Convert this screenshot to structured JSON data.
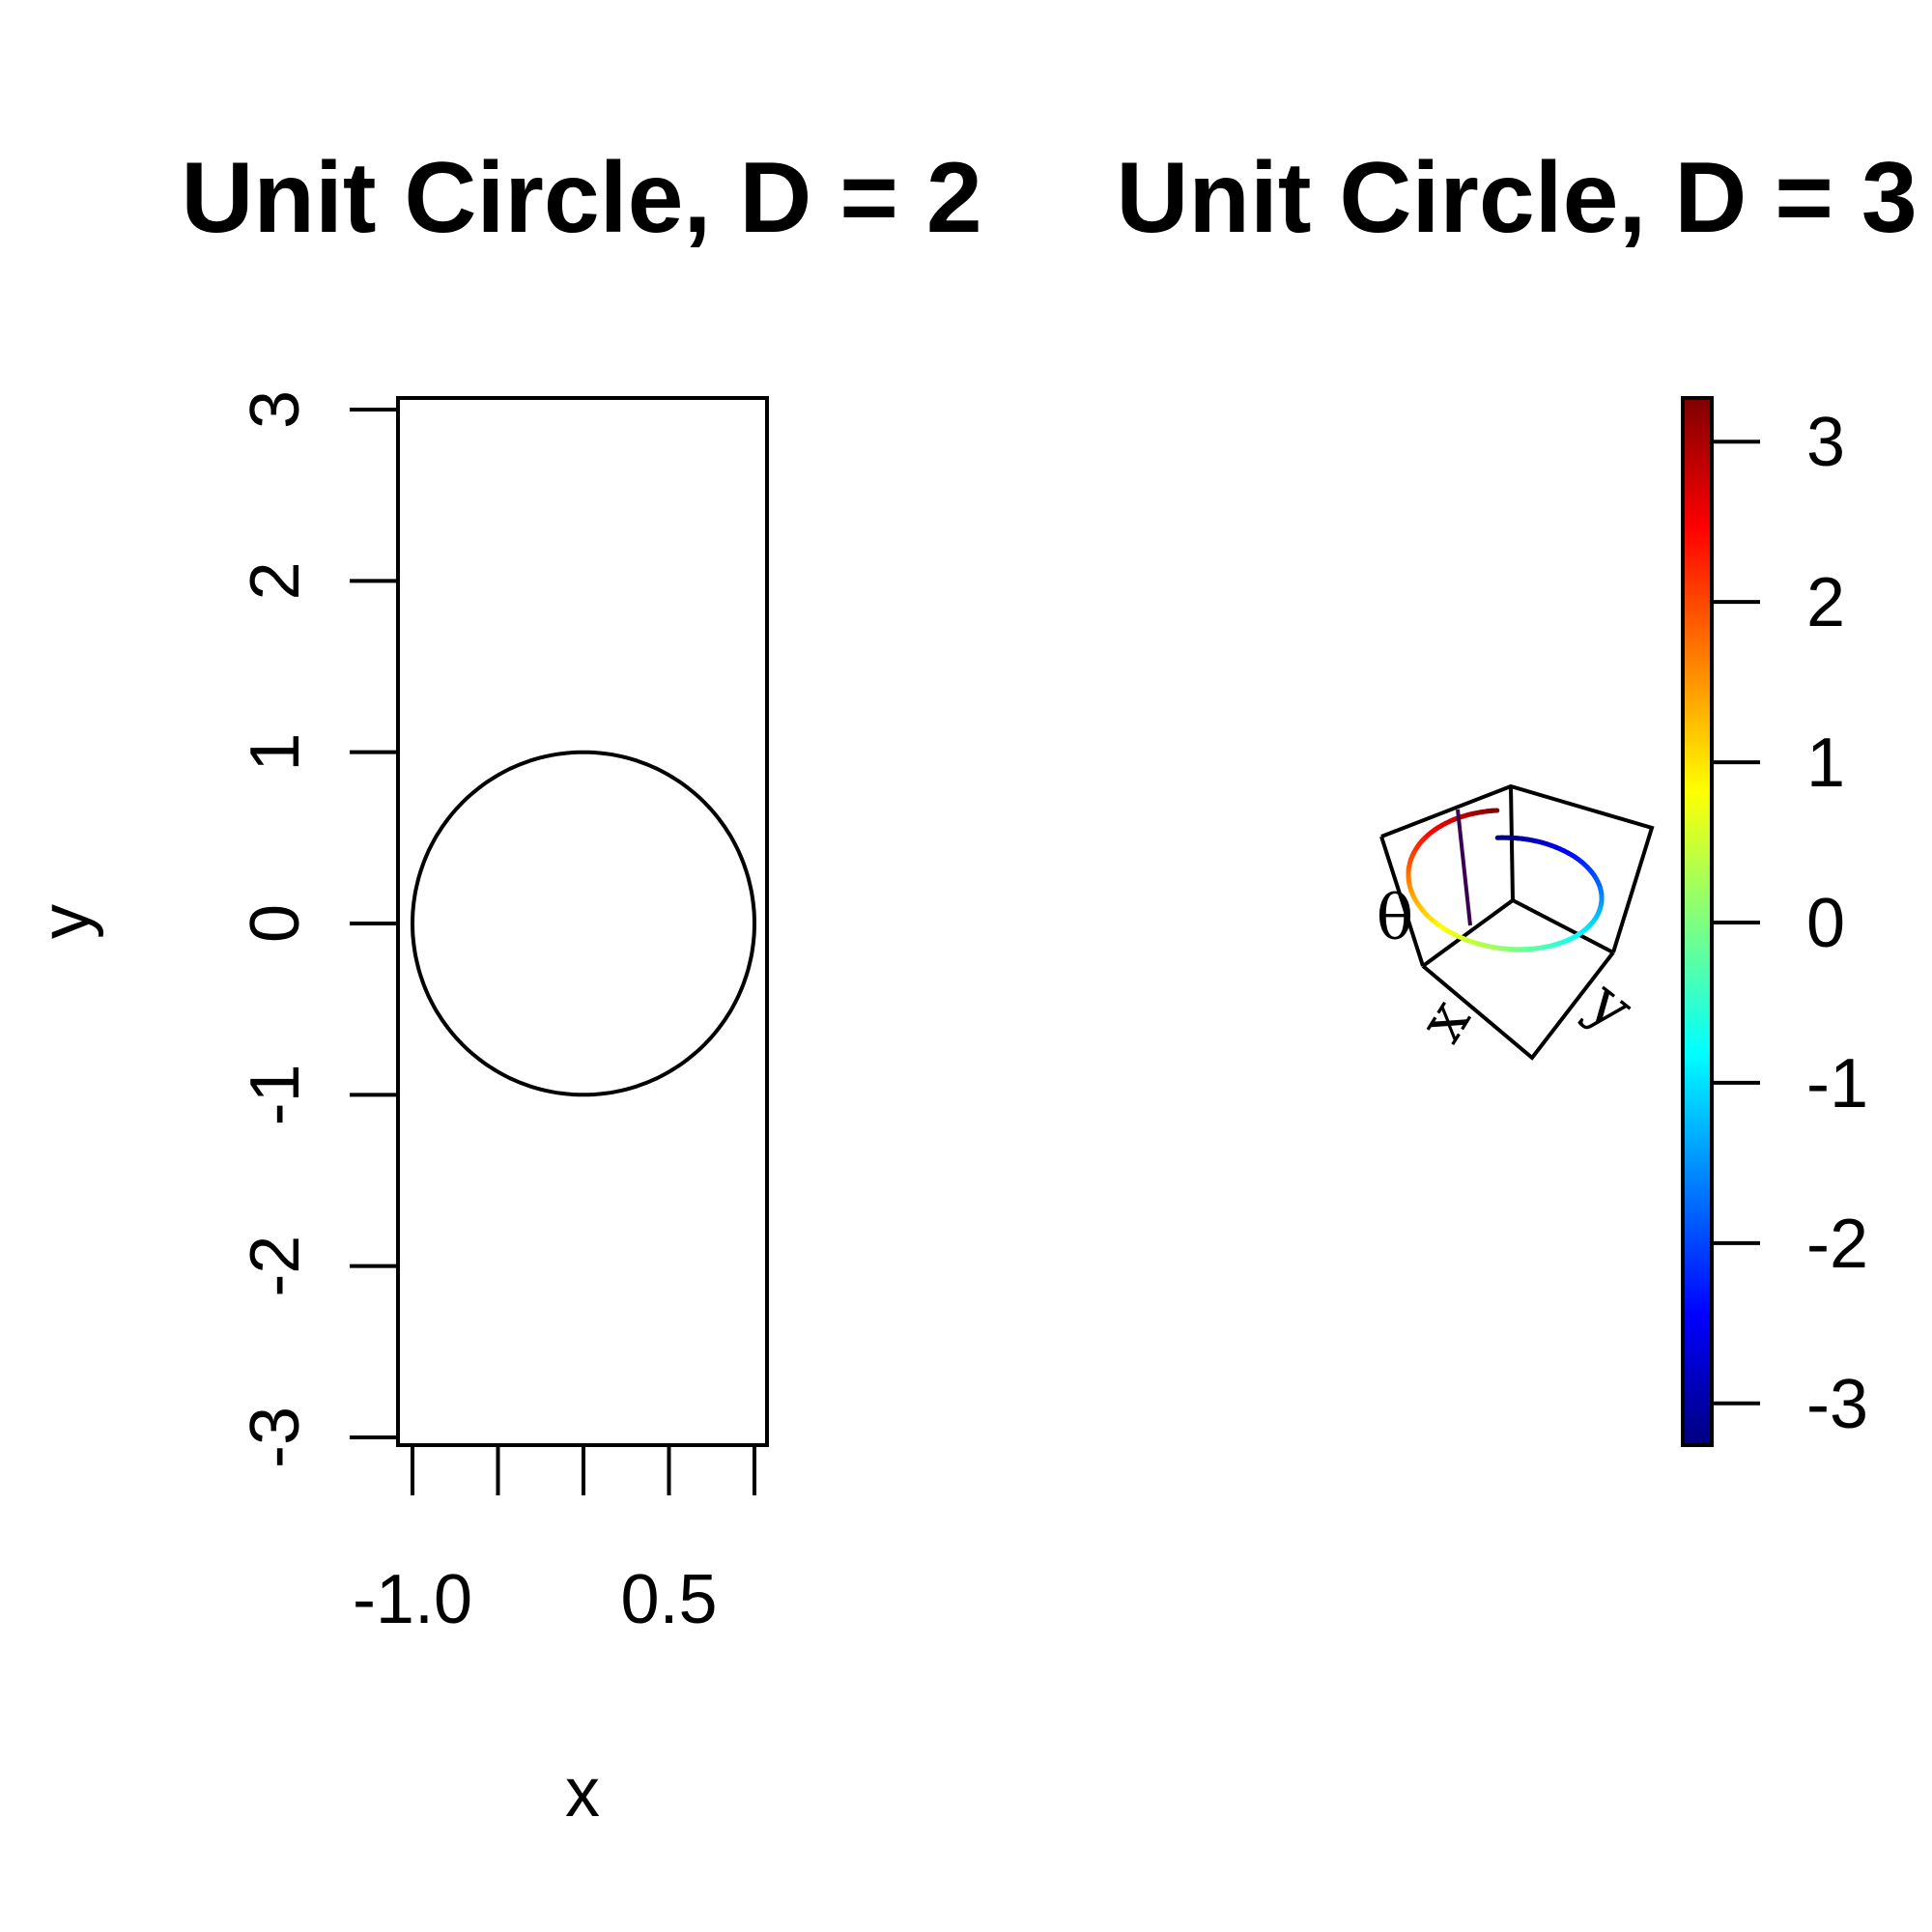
{
  "chart_data": [
    {
      "type": "line",
      "title": "Unit Circle, D = 2",
      "xlabel": "x",
      "ylabel": "y",
      "xlim": [
        -1.0,
        1.0
      ],
      "ylim": [
        -3.0,
        3.0
      ],
      "x_ticks": [
        -1.0,
        -0.5,
        0.0,
        0.5,
        1.0
      ],
      "x_tick_labels": [
        "-1.0",
        "",
        "",
        "0.5",
        ""
      ],
      "y_ticks": [
        -3,
        -2,
        -1,
        0,
        1,
        2,
        3
      ],
      "y_tick_labels": [
        "-3",
        "-2",
        "-1",
        "0",
        "1",
        "2",
        "3"
      ],
      "series": [
        {
          "shape": "circle",
          "center": [
            0,
            0
          ],
          "radius": 1,
          "color": "#000000"
        }
      ]
    },
    {
      "type": "line",
      "title": "Unit Circle, D = 3",
      "projection": "3d-perspective",
      "axis_labels": {
        "x": "x",
        "y": "y",
        "z": "θ"
      },
      "series": [
        {
          "shape": "helix-circle",
          "radius": 1,
          "z_range": [
            -3.14,
            3.14
          ],
          "color_by": "z",
          "colormap": "jet"
        }
      ],
      "colorbar": {
        "range": [
          -3.14,
          3.14
        ],
        "ticks": [
          -3,
          -2,
          -1,
          0,
          1,
          2,
          3
        ],
        "tick_labels": [
          "-3",
          "-2",
          "-1",
          "0",
          "1",
          "2",
          "3"
        ]
      }
    }
  ]
}
